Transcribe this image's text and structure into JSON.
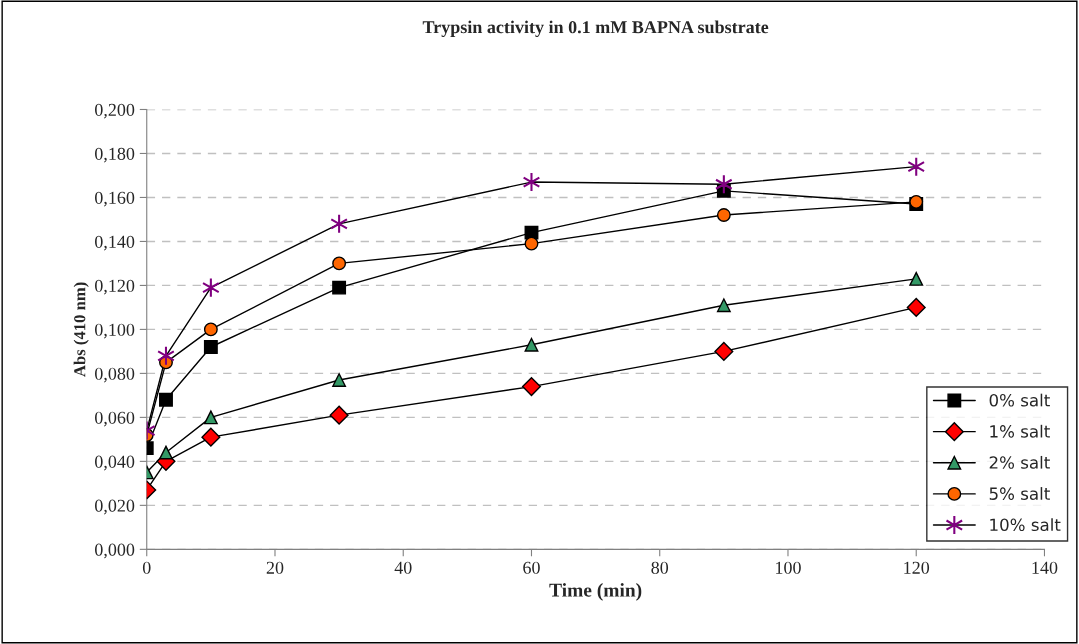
{
  "chart_data": {
    "type": "line",
    "title": "Trypsin activity in 0.1 mM BAPNA substrate",
    "xlabel": "Time (min)",
    "ylabel": "Abs (410 nm)",
    "x": [
      0,
      3,
      10,
      30,
      60,
      90,
      120
    ],
    "series": [
      {
        "name": "0% salt",
        "color": "#000000",
        "marker": "square",
        "values": [
          0.046,
          0.068,
          0.092,
          0.119,
          0.144,
          0.163,
          0.157
        ]
      },
      {
        "name": "1% salt",
        "color": "#ff0000",
        "marker": "diamond",
        "values": [
          0.027,
          0.04,
          0.051,
          0.061,
          0.074,
          0.09,
          0.11
        ]
      },
      {
        "name": "2% salt",
        "color": "#339966",
        "marker": "triangle",
        "values": [
          0.035,
          0.044,
          0.06,
          0.077,
          0.093,
          0.111,
          0.123
        ]
      },
      {
        "name": "5% salt",
        "color": "#ff6600",
        "marker": "circle",
        "values": [
          0.052,
          0.085,
          0.1,
          0.13,
          0.139,
          0.152,
          0.158
        ]
      },
      {
        "name": "10% salt",
        "color": "#800080",
        "marker": "cross",
        "values": [
          0.054,
          0.088,
          0.119,
          0.148,
          0.167,
          0.166,
          0.174
        ]
      }
    ],
    "xlim": [
      0,
      140
    ],
    "xticks": [
      0,
      20,
      40,
      60,
      80,
      100,
      120,
      140
    ],
    "ylim": [
      0,
      0.2
    ],
    "yticks": [
      {
        "value": 0,
        "label": "0,000"
      },
      {
        "value": 0.02,
        "label": "0,020"
      },
      {
        "value": 0.04,
        "label": "0,040"
      },
      {
        "value": 0.06,
        "label": "0,060"
      },
      {
        "value": 0.08,
        "label": "0,080"
      },
      {
        "value": 0.1,
        "label": "0,100"
      },
      {
        "value": 0.12,
        "label": "0,120"
      },
      {
        "value": 0.14,
        "label": "0,140"
      },
      {
        "value": 0.16,
        "label": "0,160"
      },
      {
        "value": 0.18,
        "label": "0,180"
      },
      {
        "value": 0.2,
        "label": "0,200"
      }
    ],
    "grid": "y",
    "legend": "bottom right",
    "line_style": "solid"
  }
}
